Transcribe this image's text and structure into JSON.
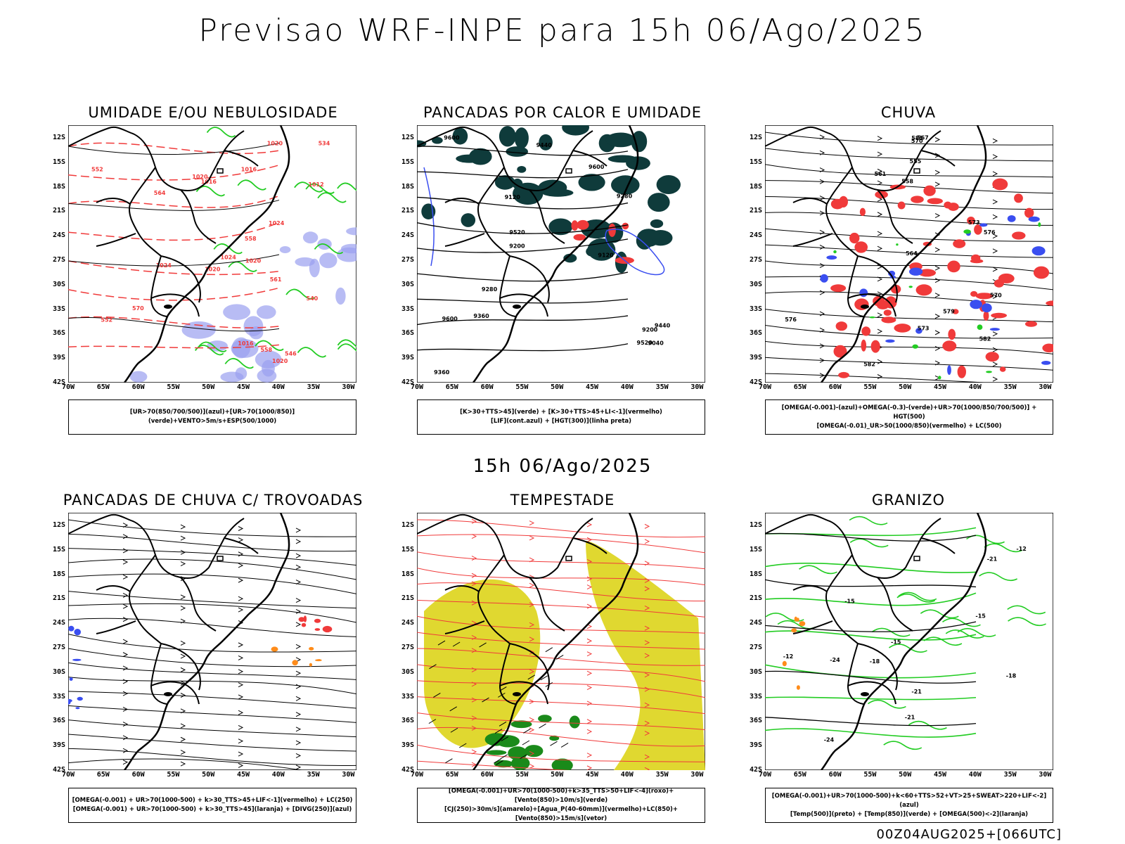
{
  "main_title": "Previsao WRF-INPE  para 15h 06/Ago/2025",
  "mid_title": "15h 06/Ago/2025",
  "footer": "00Z04AUG2025+[066UTC]",
  "lat_ticks": [
    "12S",
    "15S",
    "18S",
    "21S",
    "24S",
    "27S",
    "30S",
    "33S",
    "36S",
    "39S",
    "42S"
  ],
  "lon_ticks": [
    "70W",
    "65W",
    "60W",
    "55W",
    "50W",
    "45W",
    "40W",
    "35W",
    "30W"
  ],
  "panels": [
    {
      "title": "UMIDADE E/OU NEBULOSIDADE",
      "legend": [
        "[UR>70(850/700/500)](azul)+[UR>70(1000/850)](verde)+VENTO>5m/s+ESP(500/1000)"
      ],
      "contour_labels": [
        "1016",
        "1012",
        "1016",
        "1020",
        "1020",
        "1016",
        "1020",
        "1020",
        "1024",
        "1024",
        "1020",
        "1024",
        "570",
        "564",
        "558",
        "552",
        "546",
        "540",
        "534",
        "561",
        "558",
        "552"
      ]
    },
    {
      "title": "PANCADAS POR CALOR E UMIDADE",
      "legend": [
        "[K>30+TTS>45](verde) + [K>30+TTS>45+LI<-1](vermelho)",
        "[LIF](cont.azul) + [HGT(300)](linha preta)"
      ],
      "contour_labels": [
        "9600",
        "9600",
        "9520",
        "9600",
        "9520",
        "9440",
        "9360",
        "9280",
        "9440",
        "9360",
        "9280",
        "9200",
        "9200",
        "9120",
        "9040",
        "9120"
      ]
    },
    {
      "title": "CHUVA",
      "legend": [
        "[OMEGA(-0.001)-(azul)+OMEGA(-0.3)-(verde)+UR>70(1000/850/700/500)] + HGT(500)",
        "[OMEGA(-0.01)_UR>50(1000/850)(vermelho) + LC(500)"
      ],
      "contour_labels": [
        "582",
        "585",
        "582",
        "579",
        "576",
        "573",
        "570",
        "567",
        "564",
        "561",
        "558",
        "555",
        "576",
        "573",
        "570"
      ]
    },
    {
      "title": "PANCADAS DE CHUVA C/ TROVOADAS",
      "legend": [
        "[OMEGA(-0.001) + UR>70(1000-500) + k>30_TTS>45+LIF<-1](vermelho) + LC(250)",
        "[OMEGA(-0.001) + UR>70(1000-500) + k>30_TTS>45](laranja) + [DIVG(250)](azul)"
      ],
      "contour_labels": []
    },
    {
      "title": "TEMPESTADE",
      "legend": [
        "[OMEGA(-0.001)+UR>70(1000-500)+k>35_TTS>50+LIF<-4](roxo)+[Vento(850)>10m/s](verde)",
        "[CJ(250)>30m/s](amarelo)+[Agua_P(40-60mm)](vermelho)+LC(850)+[Vento(850)>15m/s](vetor)"
      ],
      "contour_labels": []
    },
    {
      "title": "GRANIZO",
      "legend": [
        "[OMEGA(-0.001)+UR>70(1000-500)+k<60+TTS>52+VT>25+SWEAT>220+LIF<-2](azul)",
        "[Temp(500)](preto) + [Temp(850)](verde) + [OMEGA(500)<-2](laranja)"
      ],
      "contour_labels": [
        "-12",
        "-15",
        "-18",
        "-21",
        "-24",
        "-15",
        "-18",
        "-21",
        "-12",
        "-15",
        "-24",
        "-21"
      ]
    }
  ],
  "colors": {
    "blue": "#3a4ef0",
    "light_blue": "#9aa0f0",
    "green": "#22cc22",
    "red": "#f03a3a",
    "orange": "#ff8c1a",
    "dark_teal": "#0f3b3b",
    "yellow": "#e0d830",
    "dark_green": "#1a8a1a"
  }
}
